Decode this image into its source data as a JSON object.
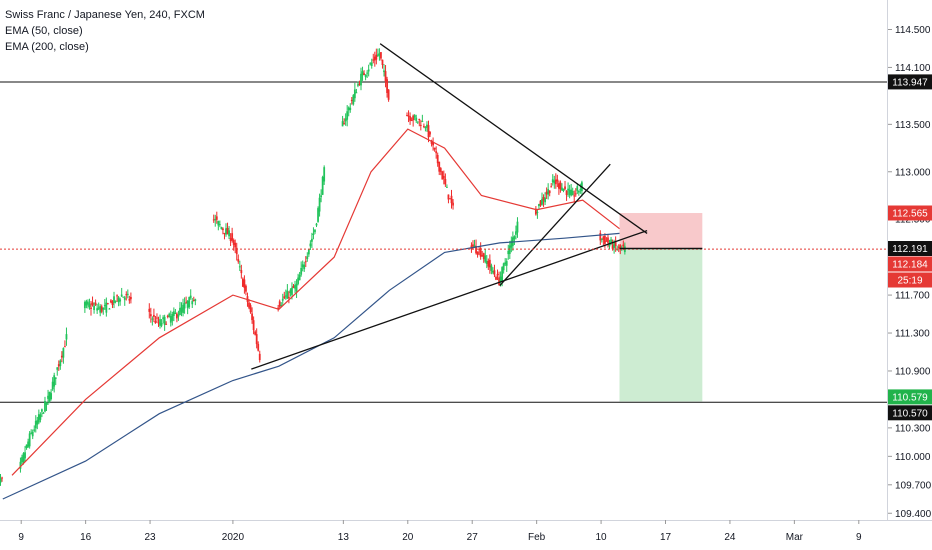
{
  "header": {
    "symbol": "Swiss Franc / Japanese Yen, 240, FXCM",
    "indicators": [
      "EMA (50, close)",
      "EMA (200, close)"
    ]
  },
  "colors": {
    "up": "#26a69a",
    "green_candle": "#22c35b",
    "down": "#ef2a2a",
    "ema50": "#e53935",
    "ema200": "#33558a",
    "stop_zone": "#f8c9cb",
    "target_zone": "#cdecd2",
    "resistance_badge": "#111111",
    "price_badge": "#e53935",
    "target_badge": "#21b34b"
  },
  "y_axis": {
    "ticks": [
      "114.500",
      "114.100",
      "113.500",
      "113.000",
      "112.500",
      "111.700",
      "111.300",
      "110.900",
      "110.300",
      "110.000",
      "109.700",
      "109.400"
    ]
  },
  "price_labels": {
    "resistance": "113.947",
    "stop": "112.565",
    "entry": "112.191",
    "current_price": "112.184",
    "countdown": "25:19",
    "target": "110.579",
    "support": "110.570"
  },
  "x_axis": {
    "ticks": [
      "9",
      "16",
      "23",
      "2020",
      "13",
      "20",
      "27",
      "Feb",
      "10",
      "17",
      "24",
      "Mar",
      "9"
    ]
  },
  "chart_data": {
    "type": "candlestick",
    "instrument": "Swiss Franc / Japanese Yen",
    "timeframe": "240",
    "source": "FXCM",
    "ylim": [
      109.35,
      114.6
    ],
    "x_range": [
      "2019-12-08",
      "2020-03-10"
    ],
    "horizontal_lines": [
      113.947,
      110.57
    ],
    "current_price": 112.184,
    "entry": 112.191,
    "stop": 112.565,
    "target": 110.579,
    "close_path": [
      [
        "2019-12-06",
        109.85
      ],
      [
        "2019-12-08",
        109.6
      ],
      [
        "2019-12-10",
        110.2
      ],
      [
        "2019-12-12",
        110.6
      ],
      [
        "2019-12-14",
        111.25
      ],
      [
        "2019-12-16",
        111.6
      ],
      [
        "2019-12-18",
        111.55
      ],
      [
        "2019-12-20",
        111.7
      ],
      [
        "2019-12-22",
        111.6
      ],
      [
        "2019-12-24",
        111.4
      ],
      [
        "2019-12-26",
        111.5
      ],
      [
        "2019-12-28",
        111.7
      ],
      [
        "2019-12-29",
        112.3
      ],
      [
        "2019-12-30",
        112.5
      ],
      [
        "2020-01-01",
        112.3
      ],
      [
        "2020-01-03",
        111.5
      ],
      [
        "2020-01-04",
        111.05
      ],
      [
        "2020-01-06",
        111.6
      ],
      [
        "2020-01-08",
        111.8
      ],
      [
        "2020-01-10",
        112.4
      ],
      [
        "2020-01-11",
        113.0
      ],
      [
        "2020-01-13",
        113.5
      ],
      [
        "2020-01-15",
        114.0
      ],
      [
        "2020-01-17",
        114.25
      ],
      [
        "2020-01-18",
        113.8
      ],
      [
        "2020-01-20",
        113.6
      ],
      [
        "2020-01-22",
        113.5
      ],
      [
        "2020-01-24",
        112.9
      ],
      [
        "2020-01-26",
        112.3
      ],
      [
        "2020-01-28",
        112.15
      ],
      [
        "2020-01-30",
        111.85
      ],
      [
        "2020-02-01",
        112.45
      ],
      [
        "2020-02-03",
        112.6
      ],
      [
        "2020-02-05",
        112.9
      ],
      [
        "2020-02-07",
        112.75
      ],
      [
        "2020-02-08",
        112.85
      ],
      [
        "2020-02-10",
        112.3
      ],
      [
        "2020-02-11",
        112.25
      ],
      [
        "2020-02-12",
        112.184
      ]
    ],
    "series": [
      {
        "name": "EMA (50, close)",
        "values": [
          [
            "2019-12-08",
            109.8
          ],
          [
            "2019-12-16",
            110.6
          ],
          [
            "2019-12-24",
            111.25
          ],
          [
            "2020-01-01",
            111.7
          ],
          [
            "2020-01-06",
            111.55
          ],
          [
            "2020-01-12",
            112.1
          ],
          [
            "2020-01-16",
            113.0
          ],
          [
            "2020-01-20",
            113.45
          ],
          [
            "2020-01-24",
            113.25
          ],
          [
            "2020-01-28",
            112.75
          ],
          [
            "2020-02-03",
            112.6
          ],
          [
            "2020-02-08",
            112.7
          ],
          [
            "2020-02-12",
            112.4
          ]
        ]
      },
      {
        "name": "EMA (200, close)",
        "values": [
          [
            "2019-12-07",
            109.55
          ],
          [
            "2019-12-16",
            109.95
          ],
          [
            "2019-12-24",
            110.45
          ],
          [
            "2020-01-01",
            110.8
          ],
          [
            "2020-01-06",
            110.95
          ],
          [
            "2020-01-12",
            111.25
          ],
          [
            "2020-01-18",
            111.75
          ],
          [
            "2020-01-24",
            112.15
          ],
          [
            "2020-01-30",
            112.25
          ],
          [
            "2020-02-06",
            112.3
          ],
          [
            "2020-02-12",
            112.35
          ]
        ]
      }
    ],
    "trendlines": [
      {
        "from": [
          "2020-01-03",
          110.92
        ],
        "to": [
          "2020-02-15",
          112.38
        ]
      },
      {
        "from": [
          "2020-01-17",
          114.35
        ],
        "to": [
          "2020-02-15",
          112.35
        ]
      },
      {
        "from": [
          "2020-01-30",
          111.8
        ],
        "to": [
          "2020-02-11",
          113.08
        ]
      }
    ],
    "risk_reward_box": {
      "x_from": "2020-02-12",
      "x_to": "2020-02-21",
      "entry": 112.191,
      "stop": 112.565,
      "target": 110.579
    }
  }
}
